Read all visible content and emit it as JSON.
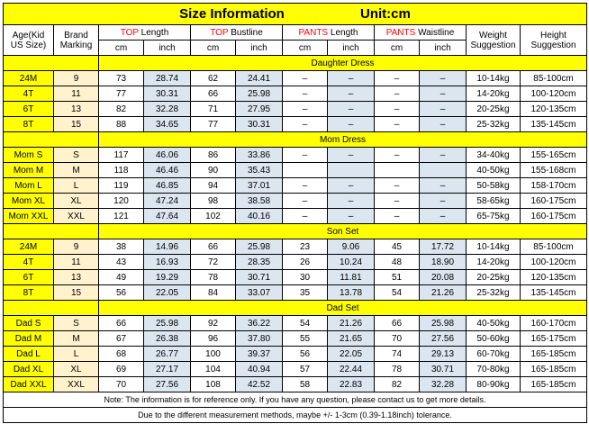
{
  "title": {
    "size_info": "Size Information",
    "unit": "Unit:cm"
  },
  "headers": {
    "age": "Age(Kid US Size)",
    "age_l1": "Age(Kid",
    "age_l2": "US Size)",
    "brand_l1": "Brand",
    "brand_l2": "Marking",
    "top_length_red": "TOP",
    "top_length_rest": " Length",
    "top_bust_red": "TOP",
    "top_bust_rest": " Bustline",
    "pants_length_red": "PANTS",
    "pants_length_rest": " Length",
    "pants_waist_red": "PANTS",
    "pants_waist_rest": " Waistline",
    "weight_l1": "Weight",
    "weight_l2": "Suggestion",
    "height_l1": "Height",
    "height_l2": "Suggestion",
    "cm": "cm",
    "inch": "inch"
  },
  "sections": [
    {
      "name": "Daughter Dress",
      "rows": [
        [
          "24M",
          "9",
          "73",
          "28.74",
          "62",
          "24.41",
          "–",
          "–",
          "–",
          "–",
          "10-14kg",
          "85-100cm"
        ],
        [
          "4T",
          "11",
          "77",
          "30.31",
          "66",
          "25.98",
          "–",
          "–",
          "–",
          "–",
          "14-20kg",
          "100-120cm"
        ],
        [
          "6T",
          "13",
          "82",
          "32.28",
          "71",
          "27.95",
          "–",
          "–",
          "–",
          "–",
          "20-25kg",
          "120-135cm"
        ],
        [
          "8T",
          "15",
          "88",
          "34.65",
          "77",
          "30.31",
          "–",
          "–",
          "–",
          "–",
          "25-32kg",
          "135-145cm"
        ]
      ]
    },
    {
      "name": "Mom Dress",
      "rows": [
        [
          "Mom S",
          "S",
          "117",
          "46.06",
          "86",
          "33.86",
          "–",
          "–",
          "–",
          "–",
          "34-40kg",
          "155-165cm"
        ],
        [
          "Mom M",
          "M",
          "118",
          "46.46",
          "90",
          "35.43",
          "",
          "",
          "",
          "",
          "40-50kg",
          "155-168cm"
        ],
        [
          "Mom L",
          "L",
          "119",
          "46.85",
          "94",
          "37.01",
          "–",
          "–",
          "–",
          "–",
          "50-58kg",
          "158-170cm"
        ],
        [
          "Mom XL",
          "XL",
          "120",
          "47.24",
          "98",
          "38.58",
          "–",
          "–",
          "–",
          "–",
          "58-65kg",
          "160-175cm"
        ],
        [
          "Mom XXL",
          "XXL",
          "121",
          "47.64",
          "102",
          "40.16",
          "–",
          "–",
          "–",
          "–",
          "65-75kg",
          "160-175cm"
        ]
      ]
    },
    {
      "name": "Son Set",
      "rows": [
        [
          "24M",
          "9",
          "38",
          "14.96",
          "66",
          "25.98",
          "23",
          "9.06",
          "45",
          "17.72",
          "10-14kg",
          "85-100cm"
        ],
        [
          "4T",
          "11",
          "43",
          "16.93",
          "72",
          "28.35",
          "26",
          "10.24",
          "48",
          "18.90",
          "14-20kg",
          "100-120cm"
        ],
        [
          "6T",
          "13",
          "49",
          "19.29",
          "78",
          "30.71",
          "30",
          "11.81",
          "51",
          "20.08",
          "20-25kg",
          "120-135cm"
        ],
        [
          "8T",
          "15",
          "56",
          "22.05",
          "84",
          "33.07",
          "35",
          "13.78",
          "54",
          "21.26",
          "25-32kg",
          "135-145cm"
        ]
      ]
    },
    {
      "name": "Dad Set",
      "rows": [
        [
          "Dad S",
          "S",
          "66",
          "25.98",
          "92",
          "36.22",
          "54",
          "21.26",
          "66",
          "25.98",
          "40-50kg",
          "160-170cm"
        ],
        [
          "Dad M",
          "M",
          "67",
          "26.38",
          "96",
          "37.80",
          "55",
          "21.65",
          "70",
          "27.56",
          "50-60kg",
          "165-175cm"
        ],
        [
          "Dad L",
          "L",
          "68",
          "26.77",
          "100",
          "39.37",
          "56",
          "22.05",
          "74",
          "29.13",
          "60-70kg",
          "165-185cm"
        ],
        [
          "Dad XL",
          "XL",
          "69",
          "27.17",
          "104",
          "40.94",
          "57",
          "22.44",
          "78",
          "30.71",
          "70-80kg",
          "165-185cm"
        ],
        [
          "Dad XXL",
          "XXL",
          "70",
          "27.56",
          "108",
          "42.52",
          "58",
          "22.83",
          "82",
          "32.28",
          "80-90kg",
          "165-185cm"
        ]
      ]
    }
  ],
  "notes": [
    "Note: The information is for reference only. If you have any question, please contact us to get more details.",
    "Due to the different measurement methods, maybe +/- 1-3cm (0.39-1.18inch) tolerance."
  ],
  "colors": {
    "yellow": "#ffff00",
    "peach": "#fff2cc",
    "blue": "#dce6f1",
    "red": "#ff0000"
  }
}
